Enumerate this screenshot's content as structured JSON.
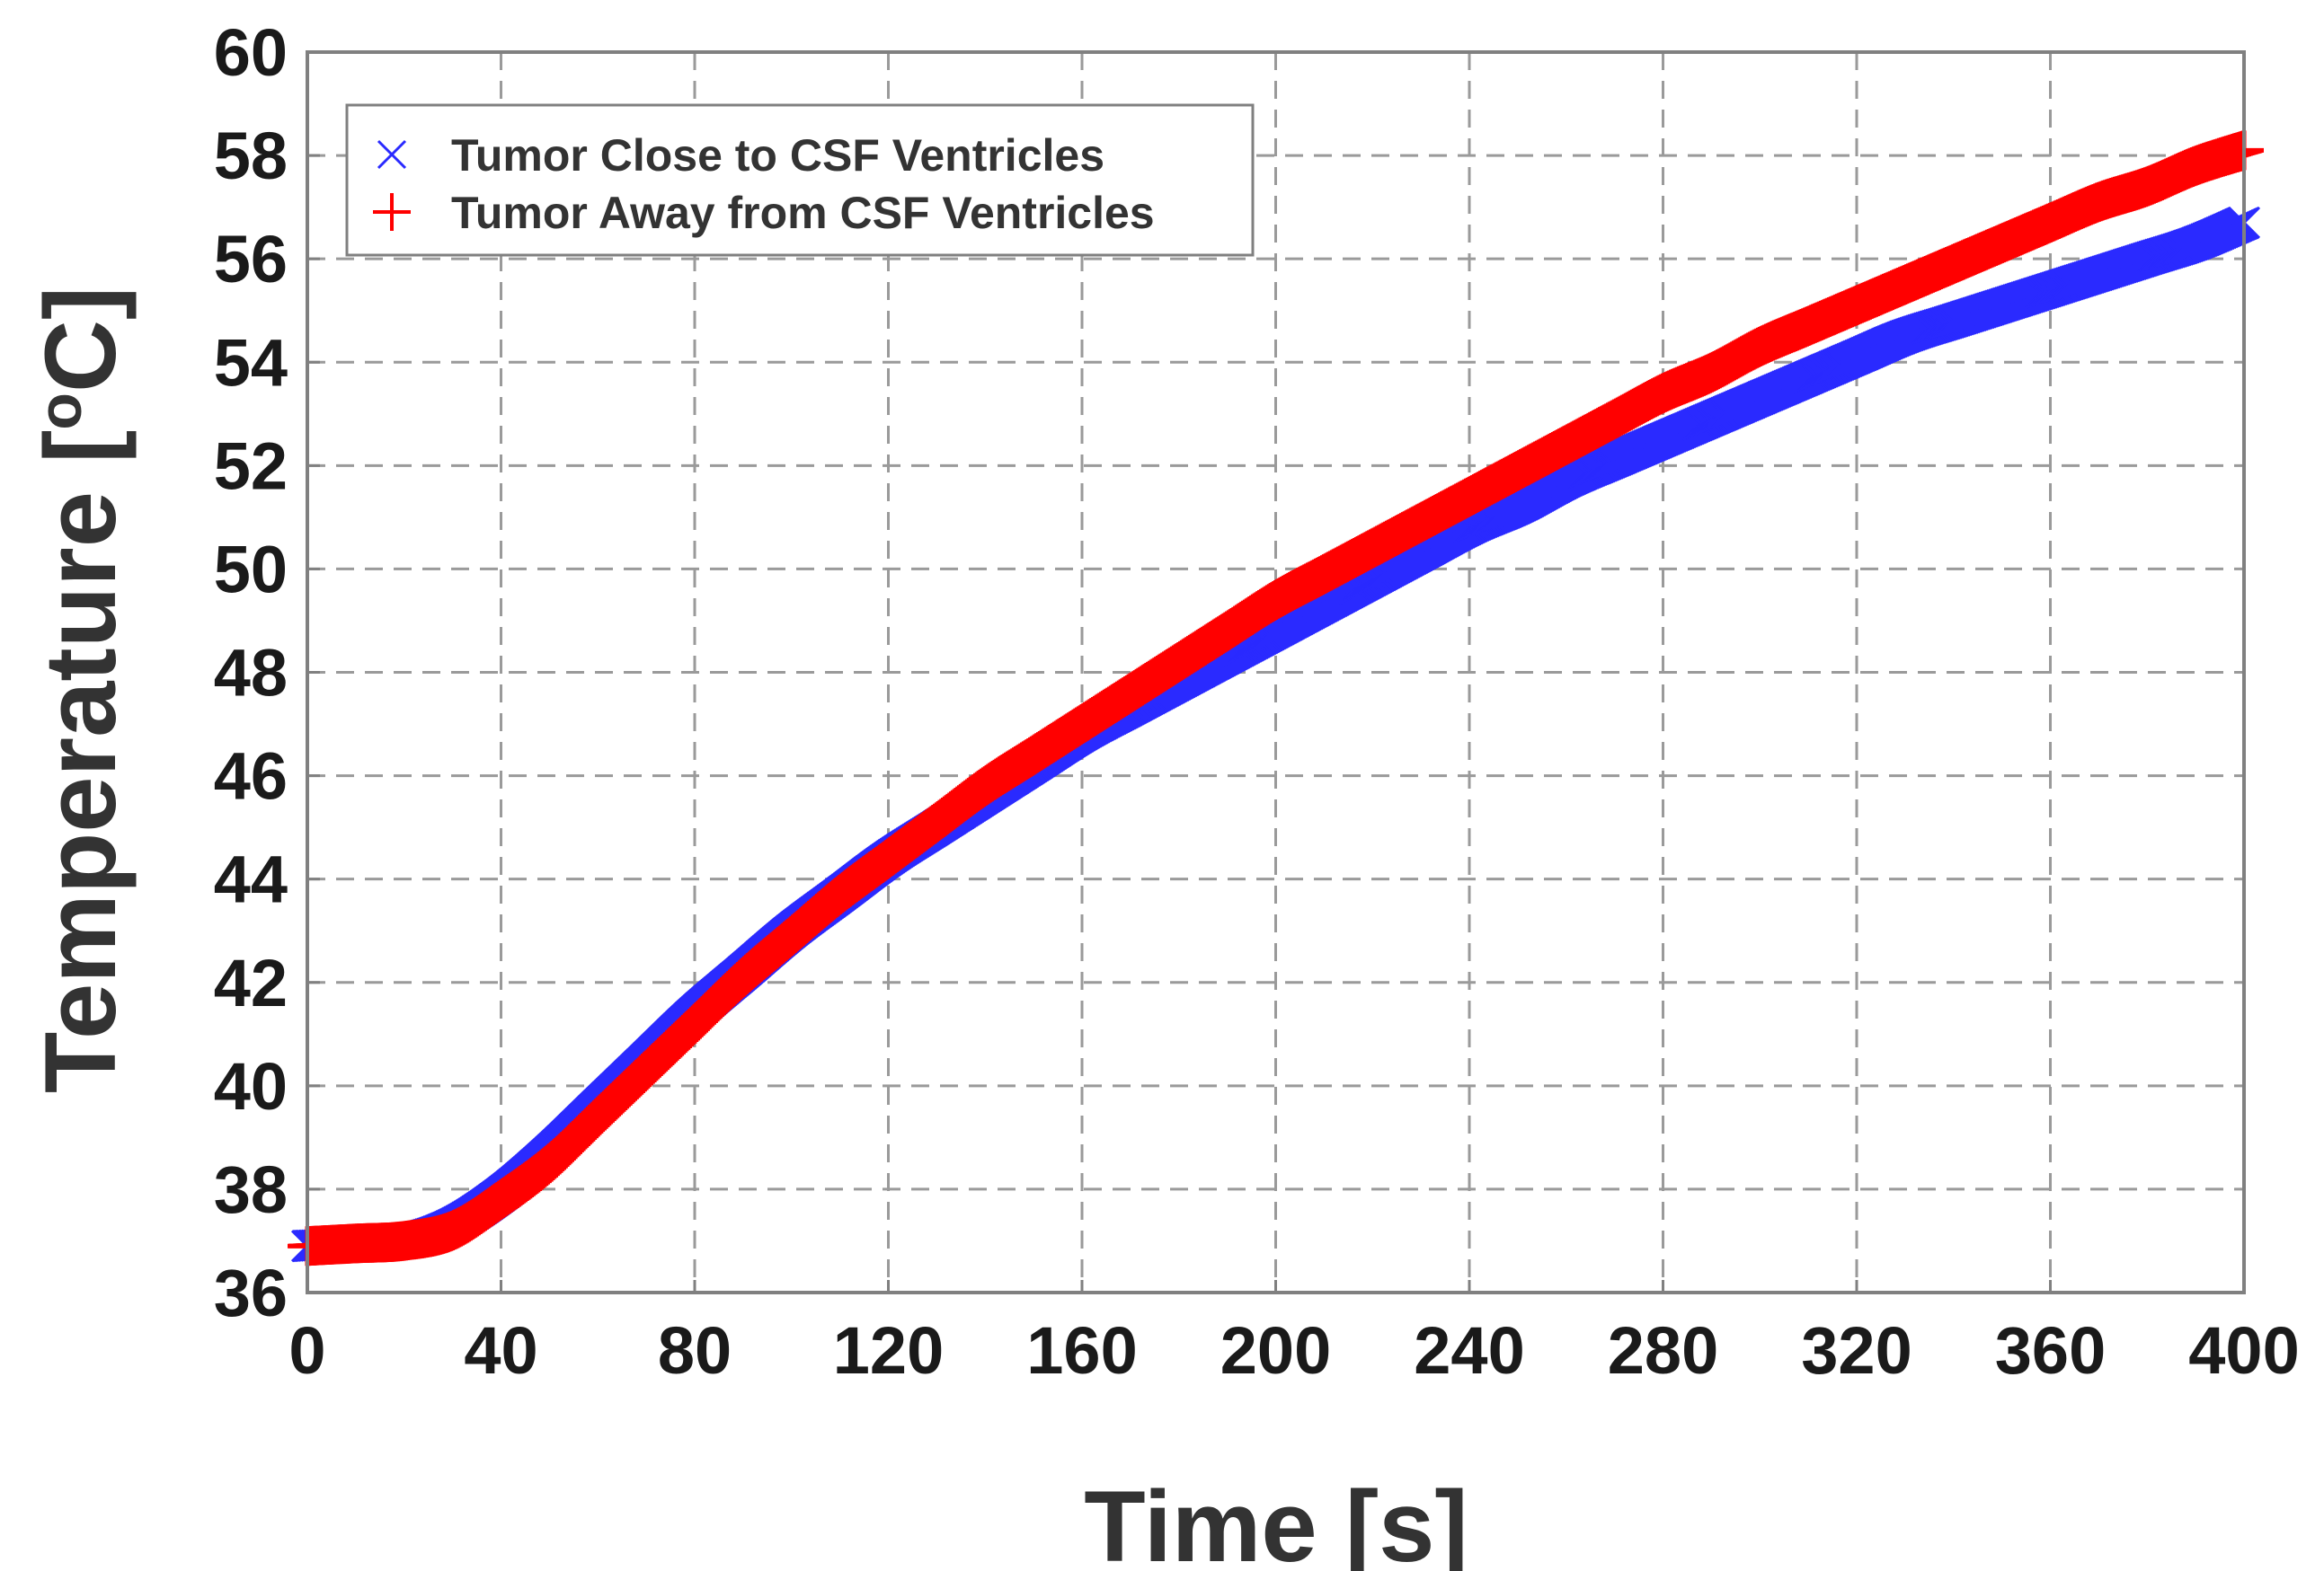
{
  "chart_data": {
    "type": "scatter",
    "title": "",
    "xlabel": "Time [s]",
    "ylabel_parts": {
      "before": "Temperature [",
      "sup": "o",
      "after": "C]"
    },
    "xlim": [
      0,
      400
    ],
    "ylim": [
      36,
      60
    ],
    "x_ticks": [
      "0",
      "40",
      "80",
      "120",
      "160",
      "200",
      "240",
      "280",
      "320",
      "360",
      "400"
    ],
    "y_ticks": [
      "36",
      "38",
      "40",
      "42",
      "44",
      "46",
      "48",
      "50",
      "52",
      "54",
      "56",
      "58",
      "60"
    ],
    "grid": true,
    "legend_position": "top-left",
    "x": [
      0,
      10,
      20,
      30,
      40,
      50,
      60,
      70,
      80,
      90,
      100,
      110,
      120,
      130,
      140,
      150,
      160,
      170,
      180,
      190,
      200,
      210,
      220,
      230,
      240,
      250,
      260,
      270,
      280,
      290,
      300,
      310,
      320,
      330,
      340,
      350,
      360,
      370,
      380,
      390,
      400
    ],
    "series": [
      {
        "name": "Tumor Close to CSF Ventricles",
        "marker": "x",
        "color": "#2a2aff",
        "values": [
          36.9,
          36.95,
          37.0,
          37.3,
          37.9,
          38.7,
          39.6,
          40.5,
          41.4,
          42.2,
          43.0,
          43.7,
          44.4,
          45.0,
          45.6,
          46.2,
          46.8,
          47.3,
          47.8,
          48.3,
          48.8,
          49.3,
          49.8,
          50.3,
          50.8,
          51.2,
          51.7,
          52.1,
          52.5,
          52.9,
          53.3,
          53.7,
          54.1,
          54.5,
          54.8,
          55.1,
          55.4,
          55.7,
          56.0,
          56.3,
          56.7
        ]
      },
      {
        "name": "Tumor Away from CSF Ventricles",
        "marker": "+",
        "color": "#ff0000",
        "values": [
          36.9,
          36.95,
          37.0,
          37.2,
          37.8,
          38.5,
          39.4,
          40.3,
          41.2,
          42.1,
          42.9,
          43.7,
          44.4,
          45.1,
          45.8,
          46.4,
          47.0,
          47.6,
          48.2,
          48.8,
          49.4,
          49.9,
          50.4,
          50.9,
          51.4,
          51.9,
          52.4,
          52.9,
          53.4,
          53.8,
          54.3,
          54.7,
          55.1,
          55.5,
          55.9,
          56.3,
          56.7,
          57.1,
          57.4,
          57.8,
          58.1
        ]
      }
    ]
  }
}
